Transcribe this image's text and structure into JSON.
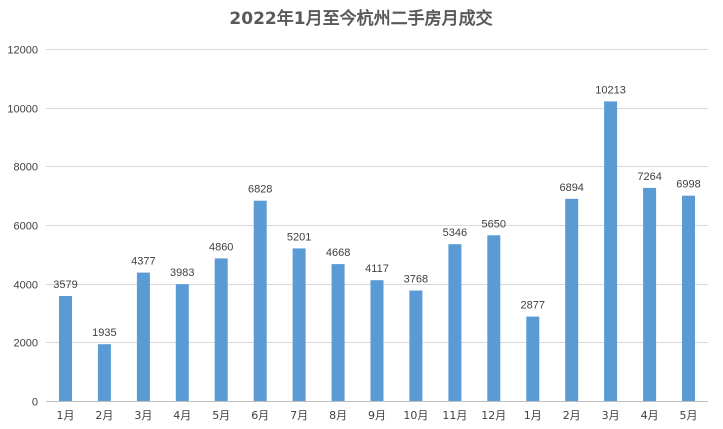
{
  "chart_data": {
    "type": "bar",
    "title": "2022年1月至今杭州二手房月成交",
    "xlabel": "",
    "ylabel": "",
    "categories": [
      "1月",
      "2月",
      "3月",
      "4月",
      "5月",
      "6月",
      "7月",
      "8月",
      "9月",
      "10月",
      "11月",
      "12月",
      "1月",
      "2月",
      "3月",
      "4月",
      "5月"
    ],
    "values": [
      3579,
      1935,
      4377,
      3983,
      4860,
      6828,
      5201,
      4668,
      4117,
      3768,
      5346,
      5650,
      2877,
      6894,
      10213,
      7264,
      6998
    ],
    "ylim": [
      0,
      12000
    ],
    "yticks": [
      0,
      2000,
      4000,
      6000,
      8000,
      10000,
      12000
    ],
    "grid": true,
    "legend": "none",
    "bar_color": "#5b9bd5"
  }
}
